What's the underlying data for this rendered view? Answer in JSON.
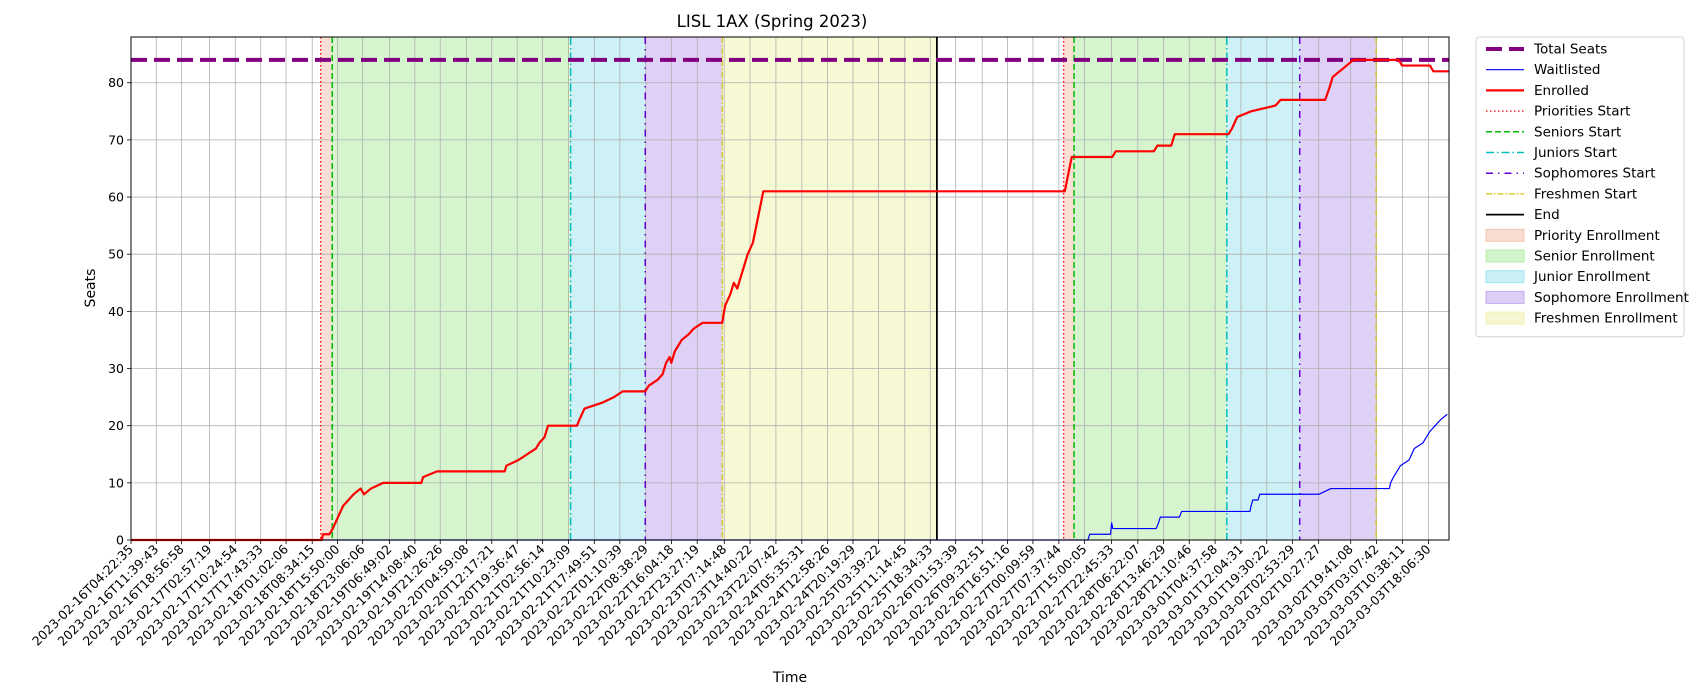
{
  "chart_data": {
    "type": "line",
    "title": "LISL 1AX (Spring 2023)",
    "xlabel": "Time",
    "ylabel": "Seats",
    "ylim": [
      0,
      88
    ],
    "y_ticks": [
      0,
      10,
      20,
      30,
      40,
      50,
      60,
      70,
      80
    ],
    "grid": true,
    "legend_position": "outside right, top",
    "x_range": [
      "2023-02-16T04:22:35",
      "2023-03-04T00:00:00"
    ],
    "x_tick_labels": [
      "2023-02-16T04:22:35",
      "2023-02-16T11:39:43",
      "2023-02-16T18:56:58",
      "2023-02-17T02:57:19",
      "2023-02-17T10:24:54",
      "2023-02-17T17:43:33",
      "2023-02-18T01:02:06",
      "2023-02-18T08:34:15",
      "2023-02-18T15:50:00",
      "2023-02-18T23:06:06",
      "2023-02-19T06:49:02",
      "2023-02-19T14:08:40",
      "2023-02-19T21:26:26",
      "2023-02-20T04:59:08",
      "2023-02-20T12:17:21",
      "2023-02-20T19:36:47",
      "2023-02-21T02:56:14",
      "2023-02-21T10:23:09",
      "2023-02-21T17:49:51",
      "2023-02-22T01:10:39",
      "2023-02-22T08:38:29",
      "2023-02-22T16:04:18",
      "2023-02-22T23:27:19",
      "2023-02-23T07:14:48",
      "2023-02-23T14:40:22",
      "2023-02-23T22:07:42",
      "2023-02-24T05:35:31",
      "2023-02-24T12:58:26",
      "2023-02-24T20:19:29",
      "2023-02-25T03:39:22",
      "2023-02-25T11:14:45",
      "2023-02-25T18:34:33",
      "2023-02-26T01:53:39",
      "2023-02-26T09:32:51",
      "2023-02-26T16:51:16",
      "2023-02-27T00:09:59",
      "2023-02-27T07:37:44",
      "2023-02-27T15:00:05",
      "2023-02-27T22:45:33",
      "2023-02-28T06:22:07",
      "2023-02-28T13:46:29",
      "2023-02-28T21:10:46",
      "2023-03-01T04:37:58",
      "2023-03-01T12:04:31",
      "2023-03-01T19:30:22",
      "2023-03-02T02:53:29",
      "2023-03-02T10:27:27",
      "2023-03-02T19:41:08",
      "2023-03-03T03:07:42",
      "2023-03-03T10:38:11",
      "2023-03-03T18:06:30"
    ],
    "series": [
      {
        "name": "Total Seats",
        "color": "#800080",
        "style": "dashed-thick",
        "points": [
          [
            "2023-02-16T04:22:35",
            84
          ],
          [
            "2023-03-04T00:00:00",
            84
          ]
        ]
      },
      {
        "name": "Waitlisted",
        "color": "#0000ff",
        "style": "solid-thin",
        "points": [
          [
            "2023-02-16T04:22:35",
            0
          ],
          [
            "2023-02-27T16:00:00",
            0
          ],
          [
            "2023-02-27T16:30:00",
            1
          ],
          [
            "2023-02-27T22:30:00",
            1
          ],
          [
            "2023-02-27T22:50:00",
            3
          ],
          [
            "2023-02-27T23:10:00",
            2
          ],
          [
            "2023-02-28T11:40:00",
            2
          ],
          [
            "2023-02-28T12:20:00",
            3
          ],
          [
            "2023-02-28T12:50:00",
            4
          ],
          [
            "2023-02-28T18:20:00",
            4
          ],
          [
            "2023-02-28T19:00:00",
            5
          ],
          [
            "2023-03-01T14:40:00",
            5
          ],
          [
            "2023-03-01T15:00:00",
            6
          ],
          [
            "2023-03-01T15:30:00",
            7
          ],
          [
            "2023-03-01T17:00:00",
            7
          ],
          [
            "2023-03-01T17:30:00",
            8
          ],
          [
            "2023-03-02T10:00:00",
            8
          ],
          [
            "2023-03-02T10:30:00",
            8
          ],
          [
            "2023-03-02T14:00:00",
            9
          ],
          [
            "2023-03-03T06:50:00",
            9
          ],
          [
            "2023-03-03T07:10:00",
            10
          ],
          [
            "2023-03-03T08:00:00",
            11
          ],
          [
            "2023-03-03T09:00:00",
            12
          ],
          [
            "2023-03-03T10:00:00",
            13
          ],
          [
            "2023-03-03T12:30:00",
            14
          ],
          [
            "2023-03-03T14:00:00",
            16
          ],
          [
            "2023-03-03T16:30:00",
            17
          ],
          [
            "2023-03-03T18:30:00",
            19
          ],
          [
            "2023-03-03T20:00:00",
            20
          ],
          [
            "2023-03-03T21:30:00",
            21
          ],
          [
            "2023-03-03T23:30:00",
            22
          ]
        ]
      },
      {
        "name": "Enrolled",
        "color": "#ff0000",
        "style": "solid-thick",
        "points": [
          [
            "2023-02-16T04:22:35",
            0
          ],
          [
            "2023-02-18T11:20:00",
            0
          ],
          [
            "2023-02-18T11:40:00",
            1
          ],
          [
            "2023-02-18T13:30:00",
            1
          ],
          [
            "2023-02-18T14:30:00",
            2
          ],
          [
            "2023-02-18T16:00:00",
            4
          ],
          [
            "2023-02-18T17:30:00",
            6
          ],
          [
            "2023-02-18T19:00:00",
            7
          ],
          [
            "2023-02-18T20:30:00",
            8
          ],
          [
            "2023-02-18T22:30:00",
            9
          ],
          [
            "2023-02-18T23:30:00",
            8
          ],
          [
            "2023-02-19T01:30:00",
            9
          ],
          [
            "2023-02-19T05:00:00",
            10
          ],
          [
            "2023-02-19T16:00:00",
            10
          ],
          [
            "2023-02-19T16:30:00",
            11
          ],
          [
            "2023-02-19T20:30:00",
            12
          ],
          [
            "2023-02-20T16:00:00",
            12
          ],
          [
            "2023-02-20T16:30:00",
            13
          ],
          [
            "2023-02-20T20:00:00",
            14
          ],
          [
            "2023-02-20T22:30:00",
            15
          ],
          [
            "2023-02-21T01:00:00",
            16
          ],
          [
            "2023-02-21T02:00:00",
            17
          ],
          [
            "2023-02-21T03:30:00",
            18
          ],
          [
            "2023-02-21T04:30:00",
            20
          ],
          [
            "2023-02-21T12:50:00",
            20
          ],
          [
            "2023-02-21T13:30:00",
            21
          ],
          [
            "2023-02-21T15:00:00",
            23
          ],
          [
            "2023-02-21T20:00:00",
            24
          ],
          [
            "2023-02-21T23:30:00",
            25
          ],
          [
            "2023-02-22T02:00:00",
            26
          ],
          [
            "2023-02-22T08:30:00",
            26
          ],
          [
            "2023-02-22T09:30:00",
            27
          ],
          [
            "2023-02-22T12:00:00",
            28
          ],
          [
            "2023-02-22T13:30:00",
            29
          ],
          [
            "2023-02-22T14:30:00",
            31
          ],
          [
            "2023-02-22T15:30:00",
            32
          ],
          [
            "2023-02-22T16:00:00",
            31
          ],
          [
            "2023-02-22T17:00:00",
            33
          ],
          [
            "2023-02-22T19:00:00",
            35
          ],
          [
            "2023-02-22T21:00:00",
            36
          ],
          [
            "2023-02-22T22:30:00",
            37
          ],
          [
            "2023-02-23T01:00:00",
            38
          ],
          [
            "2023-02-23T06:40:00",
            38
          ],
          [
            "2023-02-23T07:30:00",
            41
          ],
          [
            "2023-02-23T09:00:00",
            43
          ],
          [
            "2023-02-23T10:00:00",
            45
          ],
          [
            "2023-02-23T11:00:00",
            44
          ],
          [
            "2023-02-23T12:00:00",
            46
          ],
          [
            "2023-02-23T13:00:00",
            48
          ],
          [
            "2023-02-23T14:00:00",
            50
          ],
          [
            "2023-02-23T15:30:00",
            52
          ],
          [
            "2023-02-23T16:30:00",
            55
          ],
          [
            "2023-02-23T17:30:00",
            58
          ],
          [
            "2023-02-23T18:30:00",
            61
          ],
          [
            "2023-02-27T09:20:00",
            61
          ],
          [
            "2023-02-27T10:20:00",
            64
          ],
          [
            "2023-02-27T11:20:00",
            67
          ],
          [
            "2023-02-27T23:00:00",
            67
          ],
          [
            "2023-02-28T00:00:00",
            68
          ],
          [
            "2023-02-28T11:00:00",
            68
          ],
          [
            "2023-02-28T12:00:00",
            69
          ],
          [
            "2023-02-28T16:00:00",
            69
          ],
          [
            "2023-02-28T17:00:00",
            71
          ],
          [
            "2023-03-01T08:30:00",
            71
          ],
          [
            "2023-03-01T09:30:00",
            72
          ],
          [
            "2023-03-01T11:00:00",
            74
          ],
          [
            "2023-03-01T15:00:00",
            75
          ],
          [
            "2023-03-01T22:00:00",
            76
          ],
          [
            "2023-03-01T23:30:00",
            77
          ],
          [
            "2023-03-02T12:20:00",
            77
          ],
          [
            "2023-03-02T13:30:00",
            79
          ],
          [
            "2023-03-02T14:30:00",
            81
          ],
          [
            "2023-03-02T16:30:00",
            82
          ],
          [
            "2023-03-02T18:30:00",
            83
          ],
          [
            "2023-03-02T20:30:00",
            84
          ],
          [
            "2023-03-03T09:30:00",
            84
          ],
          [
            "2023-03-03T10:30:00",
            83
          ],
          [
            "2023-03-03T18:30:00",
            83
          ],
          [
            "2023-03-03T19:30:00",
            82
          ],
          [
            "2023-03-04T00:00:00",
            82
          ]
        ]
      }
    ],
    "phase_markers": [
      {
        "name": "Priorities Start",
        "color": "#ff0000",
        "style": "dotted",
        "times": [
          "2023-02-18T11:00:00",
          "2023-02-27T09:00:00"
        ]
      },
      {
        "name": "Seniors Start",
        "color": "#00bb00",
        "style": "dashed",
        "times": [
          "2023-02-18T14:20:00",
          "2023-02-27T12:00:00"
        ]
      },
      {
        "name": "Juniors Start",
        "color": "#00bfbf",
        "style": "dashdot",
        "times": [
          "2023-02-21T11:00:00",
          "2023-03-01T08:00:00"
        ]
      },
      {
        "name": "Sophomores Start",
        "color": "#6600cc",
        "style": "loosely-dashdot",
        "times": [
          "2023-02-22T08:30:00",
          "2023-03-02T05:00:00"
        ]
      },
      {
        "name": "Freshmen Start",
        "color": "#d8c000",
        "style": "dashdot-thin",
        "times": [
          "2023-02-23T06:40:00",
          "2023-03-03T03:00:00"
        ]
      },
      {
        "name": "End",
        "color": "#000000",
        "style": "solid",
        "times": [
          "2023-02-25T20:30:00"
        ]
      }
    ],
    "phase_spans": [
      {
        "name": "Priority Enrollment",
        "color": "#f4c4b0",
        "ranges": [
          [
            "2023-02-18T11:00:00",
            "2023-02-18T14:20:00"
          ],
          [
            "2023-02-27T09:00:00",
            "2023-02-27T12:00:00"
          ]
        ]
      },
      {
        "name": "Senior Enrollment",
        "color": "#b4eca8",
        "ranges": [
          [
            "2023-02-18T14:20:00",
            "2023-02-21T11:00:00"
          ],
          [
            "2023-02-27T12:00:00",
            "2023-03-01T08:00:00"
          ]
        ]
      },
      {
        "name": "Junior Enrollment",
        "color": "#a4e6ee",
        "ranges": [
          [
            "2023-02-21T11:00:00",
            "2023-02-22T08:30:00"
          ],
          [
            "2023-03-01T08:00:00",
            "2023-03-02T05:00:00"
          ]
        ]
      },
      {
        "name": "Sophomore Enrollment",
        "color": "#c4acee",
        "ranges": [
          [
            "2023-02-22T08:30:00",
            "2023-02-23T06:40:00"
          ],
          [
            "2023-03-02T05:00:00",
            "2023-03-03T03:00:00"
          ]
        ]
      },
      {
        "name": "Freshmen Enrollment",
        "color": "#f0f2b0",
        "ranges": [
          [
            "2023-02-23T06:40:00",
            "2023-02-25T20:30:00"
          ]
        ]
      }
    ]
  }
}
